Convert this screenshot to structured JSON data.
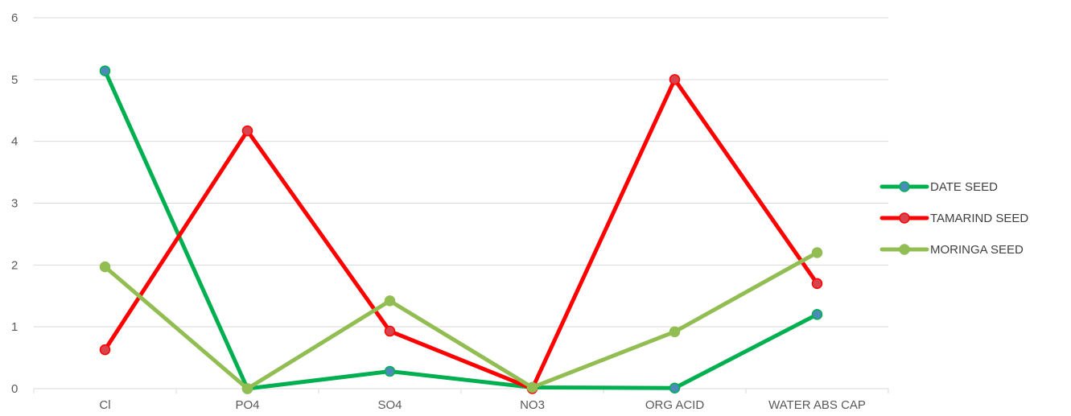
{
  "chart_data": {
    "type": "line",
    "categories": [
      "Cl",
      "PO4",
      "SO4",
      "NO3",
      "ORG ACID",
      "WATER ABS CAP"
    ],
    "ylim": [
      0,
      6
    ],
    "yticks": [
      "0",
      "1",
      "2",
      "3",
      "4",
      "5",
      "6"
    ],
    "grid": true,
    "legend_position": "right",
    "series": [
      {
        "name": "DATE SEED",
        "color": "#00B050",
        "marker_color": "#4A8CB8",
        "values": [
          5.14,
          0.0,
          0.28,
          0.02,
          0.01,
          1.2
        ]
      },
      {
        "name": "TAMARIND SEED",
        "color": "#FF0000",
        "marker_color": "#D9434E",
        "values": [
          0.63,
          4.17,
          0.93,
          0.0,
          5.0,
          1.7
        ]
      },
      {
        "name": "MORINGA SEED",
        "color": "#92BD52",
        "marker_color": "#92BD52",
        "values": [
          1.97,
          0.0,
          1.42,
          0.02,
          0.92,
          2.2
        ]
      }
    ]
  }
}
